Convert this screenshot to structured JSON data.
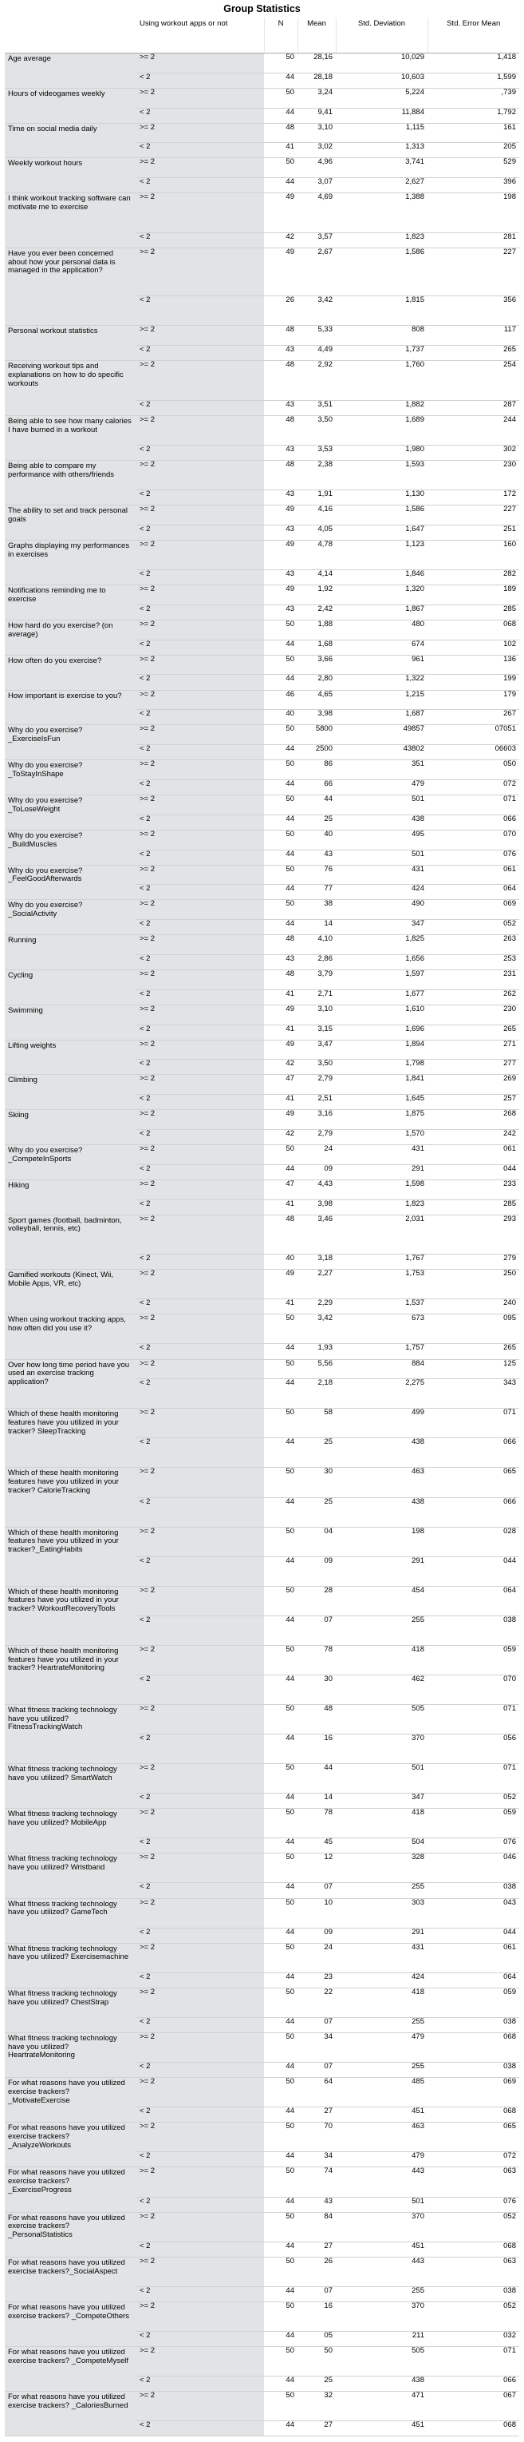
{
  "title": "Group Statistics",
  "headers": {
    "group": "Using workout apps or not",
    "n": "N",
    "mean": "Mean",
    "sd": "Std. Deviation",
    "se": "Std. Error Mean"
  },
  "rows": [
    {
      "label": "Age average",
      "g": [
        [
          ">= 2",
          "50",
          "28,16",
          "10,029",
          "1,418"
        ],
        [
          "< 2",
          "44",
          "28,18",
          "10,603",
          "1,599"
        ]
      ]
    },
    {
      "label": "Hours of videogames weekly",
      "g": [
        [
          ">= 2",
          "50",
          "3,24",
          "5,224",
          ",739"
        ],
        [
          "< 2",
          "44",
          "9,41",
          "11,884",
          "1,792"
        ]
      ]
    },
    {
      "label": "Time on social media daily",
      "g": [
        [
          ">= 2",
          "48",
          "3,10",
          "1,115",
          "161"
        ],
        [
          "< 2",
          "41",
          "3,02",
          "1,313",
          "205"
        ]
      ]
    },
    {
      "label": "Weekly workout hours",
      "g": [
        [
          ">= 2",
          "50",
          "4,96",
          "3,741",
          "529"
        ],
        [
          "< 2",
          "44",
          "3,07",
          "2,627",
          "396"
        ]
      ]
    },
    {
      "label": "I think workout tracking software can motivate me to exercise",
      "g": [
        [
          ">= 2",
          "49",
          "4,69",
          "1,388",
          "198"
        ],
        [
          "< 2",
          "42",
          "3,57",
          "1,823",
          "281"
        ]
      ]
    },
    {
      "label": "Have you ever been concerned about how your personal data is managed in the application?",
      "g": [
        [
          ">= 2",
          "49",
          "2,67",
          "1,586",
          "227"
        ],
        [
          "< 2",
          "26",
          "3,42",
          "1,815",
          "356"
        ]
      ]
    },
    {
      "label": "Personal workout statistics",
      "g": [
        [
          ">= 2",
          "48",
          "5,33",
          "808",
          "117"
        ],
        [
          "< 2",
          "43",
          "4,49",
          "1,737",
          "265"
        ]
      ]
    },
    {
      "label": "Receiving workout tips and explanations on how to do specific workouts",
      "g": [
        [
          ">= 2",
          "48",
          "2,92",
          "1,760",
          "254"
        ],
        [
          "< 2",
          "43",
          "3,51",
          "1,882",
          "287"
        ]
      ]
    },
    {
      "label": "Being able to see how many calories I have burned in a workout",
      "g": [
        [
          ">= 2",
          "48",
          "3,50",
          "1,689",
          "244"
        ],
        [
          "< 2",
          "43",
          "3,53",
          "1,980",
          "302"
        ]
      ]
    },
    {
      "label": "Being able to compare my performance with others/friends",
      "g": [
        [
          ">= 2",
          "48",
          "2,38",
          "1,593",
          "230"
        ],
        [
          "< 2",
          "43",
          "1,91",
          "1,130",
          "172"
        ]
      ]
    },
    {
      "label": "The ability to set and track personal goals",
      "g": [
        [
          ">= 2",
          "49",
          "4,16",
          "1,586",
          "227"
        ],
        [
          "< 2",
          "43",
          "4,05",
          "1,647",
          "251"
        ]
      ]
    },
    {
      "label": "Graphs displaying my performances in exercises",
      "g": [
        [
          ">= 2",
          "49",
          "4,78",
          "1,123",
          "160"
        ],
        [
          "< 2",
          "43",
          "4,14",
          "1,846",
          "282"
        ]
      ]
    },
    {
      "label": "Notifications reminding me to exercise",
      "g": [
        [
          ">= 2",
          "49",
          "1,92",
          "1,320",
          "189"
        ],
        [
          "< 2",
          "43",
          "2,42",
          "1,867",
          "285"
        ]
      ]
    },
    {
      "label": "How hard do you exercise? (on average)",
      "g": [
        [
          ">= 2",
          "50",
          "1,88",
          "480",
          "068"
        ],
        [
          "< 2",
          "44",
          "1,68",
          "674",
          "102"
        ]
      ]
    },
    {
      "label": "How often do you exercise?",
      "g": [
        [
          ">= 2",
          "50",
          "3,66",
          "961",
          "136"
        ],
        [
          "< 2",
          "44",
          "2,80",
          "1,322",
          "199"
        ]
      ]
    },
    {
      "label": "How important is exercise to you?",
      "g": [
        [
          ">= 2",
          "46",
          "4,65",
          "1,215",
          "179"
        ],
        [
          "< 2",
          "40",
          "3,98",
          "1,687",
          "267"
        ]
      ]
    },
    {
      "label": "Why do you exercise? _ExerciseIsFun",
      "g": [
        [
          ">= 2",
          "50",
          "5800",
          "49857",
          "07051"
        ],
        [
          "< 2",
          "44",
          "2500",
          "43802",
          "06603"
        ]
      ]
    },
    {
      "label": "Why do you exercise? _ToStayInShape",
      "g": [
        [
          ">= 2",
          "50",
          "86",
          "351",
          "050"
        ],
        [
          "< 2",
          "44",
          "66",
          "479",
          "072"
        ]
      ]
    },
    {
      "label": "Why do you exercise? _ToLoseWeight",
      "g": [
        [
          ">= 2",
          "50",
          "44",
          "501",
          "071"
        ],
        [
          "< 2",
          "44",
          "25",
          "438",
          "066"
        ]
      ]
    },
    {
      "label": "Why do you exercise? _BuildMuscles",
      "g": [
        [
          ">= 2",
          "50",
          "40",
          "495",
          "070"
        ],
        [
          "< 2",
          "44",
          "43",
          "501",
          "076"
        ]
      ]
    },
    {
      "label": "Why do you exercise? _FeelGoodAfterwards",
      "g": [
        [
          ">= 2",
          "50",
          "76",
          "431",
          "061"
        ],
        [
          "< 2",
          "44",
          "77",
          "424",
          "064"
        ]
      ]
    },
    {
      "label": "Why do you exercise? _SocialActivity",
      "g": [
        [
          ">= 2",
          "50",
          "38",
          "490",
          "069"
        ],
        [
          "< 2",
          "44",
          "14",
          "347",
          "052"
        ]
      ]
    },
    {
      "label": "Running",
      "g": [
        [
          ">= 2",
          "48",
          "4,10",
          "1,825",
          "263"
        ],
        [
          "< 2",
          "43",
          "2,86",
          "1,656",
          "253"
        ]
      ]
    },
    {
      "label": "Cycling",
      "g": [
        [
          ">= 2",
          "48",
          "3,79",
          "1,597",
          "231"
        ],
        [
          "< 2",
          "41",
          "2,71",
          "1,677",
          "262"
        ]
      ]
    },
    {
      "label": "Swimming",
      "g": [
        [
          ">= 2",
          "49",
          "3,10",
          "1,610",
          "230"
        ],
        [
          "< 2",
          "41",
          "3,15",
          "1,696",
          "265"
        ]
      ]
    },
    {
      "label": "Lifting weights",
      "g": [
        [
          ">= 2",
          "49",
          "3,47",
          "1,894",
          "271"
        ],
        [
          "< 2",
          "42",
          "3,50",
          "1,798",
          "277"
        ]
      ]
    },
    {
      "label": "Climbing",
      "g": [
        [
          ">= 2",
          "47",
          "2,79",
          "1,841",
          "269"
        ],
        [
          "< 2",
          "41",
          "2,51",
          "1,645",
          "257"
        ]
      ]
    },
    {
      "label": "Skiing",
      "g": [
        [
          ">= 2",
          "49",
          "3,16",
          "1,875",
          "268"
        ],
        [
          "< 2",
          "42",
          "2,79",
          "1,570",
          "242"
        ]
      ]
    },
    {
      "label": "Why do you exercise? _CompeteInSports",
      "g": [
        [
          ">= 2",
          "50",
          "24",
          "431",
          "061"
        ],
        [
          "< 2",
          "44",
          "09",
          "291",
          "044"
        ]
      ]
    },
    {
      "label": "Hiking",
      "g": [
        [
          ">= 2",
          "47",
          "4,43",
          "1,598",
          "233"
        ],
        [
          "< 2",
          "41",
          "3,98",
          "1,823",
          "285"
        ]
      ]
    },
    {
      "label": "Sport games (football, badminton, volleyball, tennis, etc)",
      "g": [
        [
          ">= 2",
          "48",
          "3,46",
          "2,031",
          "293"
        ],
        [
          "< 2",
          "40",
          "3,18",
          "1,767",
          "279"
        ]
      ]
    },
    {
      "label": "Gamified workouts (Kinect, Wii, Mobile Apps, VR, etc)",
      "g": [
        [
          ">= 2",
          "49",
          "2,27",
          "1,753",
          "250"
        ],
        [
          "< 2",
          "41",
          "2,29",
          "1,537",
          "240"
        ]
      ]
    },
    {
      "label": "When using workout tracking apps, how often did you use it?",
      "g": [
        [
          ">= 2",
          "50",
          "3,42",
          "673",
          "095"
        ],
        [
          "< 2",
          "44",
          "1,93",
          "1,757",
          "265"
        ]
      ]
    },
    {
      "label": "Over how long time period have you used an exercise tracking application?",
      "g": [
        [
          ">= 2",
          "50",
          "5,56",
          "884",
          "125"
        ],
        [
          "< 2",
          "44",
          "2,18",
          "2,275",
          "343"
        ]
      ]
    },
    {
      "label": "Which of these health monitoring features have you utilized in your tracker? SleepTracking",
      "g": [
        [
          ">= 2",
          "50",
          "58",
          "499",
          "071"
        ],
        [
          "< 2",
          "44",
          "25",
          "438",
          "066"
        ]
      ]
    },
    {
      "label": "Which of these health monitoring features have you utilized in your tracker? CalorieTracking",
      "g": [
        [
          ">= 2",
          "50",
          "30",
          "463",
          "065"
        ],
        [
          "< 2",
          "44",
          "25",
          "438",
          "066"
        ]
      ]
    },
    {
      "label": "Which of these health monitoring features have you utilized in your tracker?_EatingHabits",
      "g": [
        [
          ">= 2",
          "50",
          "04",
          "198",
          "028"
        ],
        [
          "< 2",
          "44",
          "09",
          "291",
          "044"
        ]
      ]
    },
    {
      "label": "Which of these health monitoring features have you utilized in your tracker? WorkoutRecoveryTools",
      "g": [
        [
          ">= 2",
          "50",
          "28",
          "454",
          "064"
        ],
        [
          "< 2",
          "44",
          "07",
          "255",
          "038"
        ]
      ]
    },
    {
      "label": "Which of these health monitoring features have you utilized in your tracker? HeartrateMonitoring",
      "g": [
        [
          ">= 2",
          "50",
          "78",
          "418",
          "059"
        ],
        [
          "< 2",
          "44",
          "30",
          "462",
          "070"
        ]
      ]
    },
    {
      "label": "What fitness tracking technology have you utilized? FitnessTrackingWatch",
      "g": [
        [
          ">= 2",
          "50",
          "48",
          "505",
          "071"
        ],
        [
          "< 2",
          "44",
          "16",
          "370",
          "056"
        ]
      ]
    },
    {
      "label": "What fitness tracking technology have you utilized? SmartWatch",
      "g": [
        [
          ">= 2",
          "50",
          "44",
          "501",
          "071"
        ],
        [
          "< 2",
          "44",
          "14",
          "347",
          "052"
        ]
      ]
    },
    {
      "label": "What fitness tracking technology have you utilized? MobileApp",
      "g": [
        [
          ">= 2",
          "50",
          "78",
          "418",
          "059"
        ],
        [
          "< 2",
          "44",
          "45",
          "504",
          "076"
        ]
      ]
    },
    {
      "label": "What fitness tracking technology have you utilized? Wristband",
      "g": [
        [
          ">= 2",
          "50",
          "12",
          "328",
          "046"
        ],
        [
          "< 2",
          "44",
          "07",
          "255",
          "038"
        ]
      ]
    },
    {
      "label": "What fitness tracking technology have you utilized? GameTech",
      "g": [
        [
          ">= 2",
          "50",
          "10",
          "303",
          "043"
        ],
        [
          "< 2",
          "44",
          "09",
          "291",
          "044"
        ]
      ]
    },
    {
      "label": "What fitness tracking technology have you utilized? Exercisemachine",
      "g": [
        [
          ">= 2",
          "50",
          "24",
          "431",
          "061"
        ],
        [
          "< 2",
          "44",
          "23",
          "424",
          "064"
        ]
      ]
    },
    {
      "label": "What fitness tracking technology have you utilized? ChestStrap",
      "g": [
        [
          ">= 2",
          "50",
          "22",
          "418",
          "059"
        ],
        [
          "< 2",
          "44",
          "07",
          "255",
          "038"
        ]
      ]
    },
    {
      "label": "What fitness tracking technology have you utilized? HeartrateMonitoring",
      "g": [
        [
          ">= 2",
          "50",
          "34",
          "479",
          "068"
        ],
        [
          "< 2",
          "44",
          "07",
          "255",
          "038"
        ]
      ]
    },
    {
      "label": "For what reasons have you utilized exercise trackers? _MotivateExercise",
      "g": [
        [
          ">= 2",
          "50",
          "64",
          "485",
          "069"
        ],
        [
          "< 2",
          "44",
          "27",
          "451",
          "068"
        ]
      ]
    },
    {
      "label": "For what reasons have you utilized exercise trackers? _AnalyzeWorkouts",
      "g": [
        [
          ">= 2",
          "50",
          "70",
          "463",
          "065"
        ],
        [
          "< 2",
          "44",
          "34",
          "479",
          "072"
        ]
      ]
    },
    {
      "label": "For what reasons have you utilized exercise trackers? _ExerciseProgress",
      "g": [
        [
          ">= 2",
          "50",
          "74",
          "443",
          "063"
        ],
        [
          "< 2",
          "44",
          "43",
          "501",
          "076"
        ]
      ]
    },
    {
      "label": "For what reasons have you utilized exercise trackers? _PersonalStatistics",
      "g": [
        [
          ">= 2",
          "50",
          "84",
          "370",
          "052"
        ],
        [
          "< 2",
          "44",
          "27",
          "451",
          "068"
        ]
      ]
    },
    {
      "label": "For what reasons have you utilized exercise trackers?_SocialAspect",
      "g": [
        [
          ">= 2",
          "50",
          "26",
          "443",
          "063"
        ],
        [
          "< 2",
          "44",
          "07",
          "255",
          "038"
        ]
      ]
    },
    {
      "label": "For what reasons have you utilized exercise trackers? _CompeteOthers",
      "g": [
        [
          ">= 2",
          "50",
          "16",
          "370",
          "052"
        ],
        [
          "< 2",
          "44",
          "05",
          "211",
          "032"
        ]
      ]
    },
    {
      "label": "For what reasons have you utilized exercise trackers? _CompeteMyself",
      "g": [
        [
          ">= 2",
          "50",
          "50",
          "505",
          "071"
        ],
        [
          "< 2",
          "44",
          "25",
          "438",
          "066"
        ]
      ]
    },
    {
      "label": "For what reasons have you utilized exercise trackers? _CaloriesBurned",
      "g": [
        [
          ">= 2",
          "50",
          "32",
          "471",
          "067"
        ],
        [
          "< 2",
          "44",
          "27",
          "451",
          "068"
        ]
      ]
    }
  ]
}
